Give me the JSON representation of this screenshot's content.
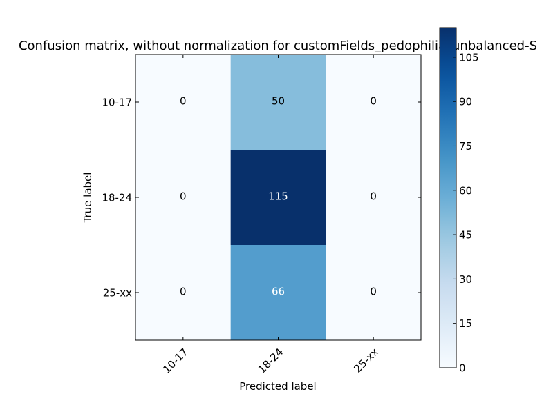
{
  "chart_data": {
    "type": "heatmap",
    "title": "Confusion matrix, without normalization for customFields_pedophilia_unbalanced-S",
    "xlabel": "Predicted label",
    "ylabel": "True label",
    "x_categories": [
      "10-17",
      "18-24",
      "25-xx"
    ],
    "y_categories": [
      "10-17",
      "18-24",
      "25-xx"
    ],
    "matrix": [
      [
        0,
        50,
        0
      ],
      [
        0,
        115,
        0
      ],
      [
        0,
        66,
        0
      ]
    ],
    "colorbar": {
      "colormap": "Blues",
      "range": [
        0,
        115
      ],
      "ticks": [
        0,
        15,
        30,
        45,
        60,
        75,
        90,
        105
      ]
    },
    "text_colors": {
      "light_cells": "#000000",
      "dark_cells": "#ffffff"
    }
  }
}
